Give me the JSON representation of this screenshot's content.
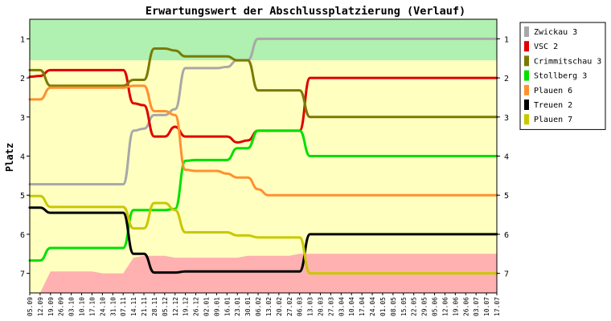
{
  "chart_data": {
    "type": "line",
    "title": "Erwartungswert der Abschlussplatzierung (Verlauf)",
    "ylabel": "Platz",
    "xlabel": "",
    "ylim": [
      0.5,
      7.5
    ],
    "y_inverted": true,
    "y_ticks": [
      "1",
      "2",
      "3",
      "4",
      "5",
      "6",
      "7"
    ],
    "grid": false,
    "legend_position": "right",
    "categories": [
      "05.09",
      "12.09",
      "19.09",
      "26.09",
      "03.10",
      "10.10",
      "17.10",
      "24.10",
      "31.10",
      "07.11",
      "14.11",
      "21.11",
      "28.11",
      "05.12",
      "12.12",
      "19.12",
      "26.12",
      "02.01",
      "09.01",
      "16.01",
      "23.01",
      "30.01",
      "06.02",
      "13.02",
      "20.02",
      "27.02",
      "06.03",
      "13.03",
      "20.03",
      "27.03",
      "03.04",
      "10.04",
      "17.04",
      "24.04",
      "01.05",
      "08.05",
      "15.05",
      "22.05",
      "29.05",
      "05.06",
      "12.06",
      "19.06",
      "26.06",
      "03.07",
      "10.07",
      "17.07"
    ],
    "bands": [
      {
        "color": "#b0f0b0",
        "lower": [
          1.55,
          1.55,
          1.55,
          1.55,
          1.55,
          1.55,
          1.55,
          1.55,
          1.55,
          1.55,
          1.55,
          1.55,
          1.55,
          1.55,
          1.55,
          1.55,
          1.55,
          1.55,
          1.55,
          1.55,
          1.55,
          1.55,
          1.55,
          1.55,
          1.55,
          1.55,
          1.55,
          1.55,
          1.55,
          1.55,
          1.55,
          1.55,
          1.55,
          1.55,
          1.55,
          1.55,
          1.55,
          1.55,
          1.55,
          1.55,
          1.55,
          1.55,
          1.55,
          1.55,
          1.55,
          1.55
        ]
      },
      {
        "color": "#ffb0b0",
        "upper": [
          7.5,
          7.5,
          6.95,
          6.95,
          6.95,
          6.95,
          6.95,
          7.0,
          7.0,
          7.0,
          6.6,
          6.55,
          6.55,
          6.55,
          6.6,
          6.6,
          6.6,
          6.6,
          6.6,
          6.6,
          6.6,
          6.55,
          6.55,
          6.55,
          6.55,
          6.55,
          6.5,
          6.5,
          6.5,
          6.5,
          6.5,
          6.5,
          6.5,
          6.5,
          6.5,
          6.5,
          6.5,
          6.5,
          6.5,
          6.5,
          6.5,
          6.5,
          6.5,
          6.5,
          6.5,
          6.5
        ]
      }
    ],
    "series": [
      {
        "name": "Zwickau 3",
        "color": "#a8a8a8",
        "values": [
          4.72,
          4.72,
          4.72,
          4.72,
          4.72,
          4.72,
          4.72,
          4.72,
          4.72,
          4.72,
          3.35,
          3.3,
          2.95,
          2.95,
          2.8,
          1.75,
          1.75,
          1.75,
          1.75,
          1.72,
          1.55,
          1.55,
          1.0,
          1.0,
          1.0,
          1.0,
          1.0,
          1.0,
          1.0,
          1.0,
          1.0,
          1.0,
          1.0,
          1.0,
          1.0,
          1.0,
          1.0,
          1.0,
          1.0,
          1.0,
          1.0,
          1.0,
          1.0,
          1.0,
          1.0,
          1.0
        ]
      },
      {
        "name": "VSC 2",
        "color": "#e00000",
        "values": [
          1.97,
          1.95,
          1.8,
          1.8,
          1.8,
          1.8,
          1.8,
          1.8,
          1.8,
          1.8,
          2.65,
          2.7,
          3.5,
          3.5,
          3.25,
          3.5,
          3.5,
          3.5,
          3.5,
          3.5,
          3.65,
          3.6,
          3.35,
          3.35,
          3.35,
          3.35,
          3.35,
          2.0,
          2.0,
          2.0,
          2.0,
          2.0,
          2.0,
          2.0,
          2.0,
          2.0,
          2.0,
          2.0,
          2.0,
          2.0,
          2.0,
          2.0,
          2.0,
          2.0,
          2.0,
          2.0
        ]
      },
      {
        "name": "Crimmitschau 3",
        "color": "#7a7a00",
        "values": [
          1.8,
          1.8,
          2.2,
          2.2,
          2.2,
          2.2,
          2.2,
          2.2,
          2.2,
          2.2,
          2.05,
          2.05,
          1.25,
          1.25,
          1.3,
          1.45,
          1.45,
          1.45,
          1.45,
          1.45,
          1.55,
          1.55,
          2.32,
          2.32,
          2.32,
          2.32,
          2.32,
          3.0,
          3.0,
          3.0,
          3.0,
          3.0,
          3.0,
          3.0,
          3.0,
          3.0,
          3.0,
          3.0,
          3.0,
          3.0,
          3.0,
          3.0,
          3.0,
          3.0,
          3.0,
          3.0
        ]
      },
      {
        "name": "Stollberg 3",
        "color": "#00e000",
        "values": [
          6.67,
          6.67,
          6.35,
          6.35,
          6.35,
          6.35,
          6.35,
          6.35,
          6.35,
          6.35,
          5.38,
          5.38,
          5.38,
          5.38,
          5.35,
          4.12,
          4.1,
          4.1,
          4.1,
          4.1,
          3.8,
          3.8,
          3.35,
          3.35,
          3.35,
          3.35,
          3.35,
          4.0,
          4.0,
          4.0,
          4.0,
          4.0,
          4.0,
          4.0,
          4.0,
          4.0,
          4.0,
          4.0,
          4.0,
          4.0,
          4.0,
          4.0,
          4.0,
          4.0,
          4.0,
          4.0
        ]
      },
      {
        "name": "Plauen 6",
        "color": "#ff9030",
        "values": [
          2.55,
          2.55,
          2.25,
          2.25,
          2.25,
          2.25,
          2.25,
          2.25,
          2.25,
          2.25,
          2.2,
          2.2,
          2.85,
          2.85,
          2.95,
          4.35,
          4.38,
          4.38,
          4.38,
          4.45,
          4.55,
          4.55,
          4.85,
          5.0,
          5.0,
          5.0,
          5.0,
          5.0,
          5.0,
          5.0,
          5.0,
          5.0,
          5.0,
          5.0,
          5.0,
          5.0,
          5.0,
          5.0,
          5.0,
          5.0,
          5.0,
          5.0,
          5.0,
          5.0,
          5.0,
          5.0
        ]
      },
      {
        "name": "Treuen 2",
        "color": "#000000",
        "values": [
          5.32,
          5.32,
          5.45,
          5.45,
          5.45,
          5.45,
          5.45,
          5.45,
          5.45,
          5.45,
          6.5,
          6.5,
          6.98,
          6.98,
          6.98,
          6.95,
          6.95,
          6.95,
          6.95,
          6.95,
          6.95,
          6.95,
          6.95,
          6.95,
          6.95,
          6.95,
          6.95,
          6.0,
          6.0,
          6.0,
          6.0,
          6.0,
          6.0,
          6.0,
          6.0,
          6.0,
          6.0,
          6.0,
          6.0,
          6.0,
          6.0,
          6.0,
          6.0,
          6.0,
          6.0,
          6.0
        ]
      },
      {
        "name": "Plauen 7",
        "color": "#c8c800",
        "values": [
          5.02,
          5.02,
          5.3,
          5.3,
          5.3,
          5.3,
          5.3,
          5.3,
          5.3,
          5.3,
          5.85,
          5.85,
          5.2,
          5.2,
          5.38,
          5.95,
          5.95,
          5.95,
          5.95,
          5.95,
          6.03,
          6.03,
          6.08,
          6.08,
          6.08,
          6.08,
          6.08,
          7.0,
          7.0,
          7.0,
          7.0,
          7.0,
          7.0,
          7.0,
          7.0,
          7.0,
          7.0,
          7.0,
          7.0,
          7.0,
          7.0,
          7.0,
          7.0,
          7.0,
          7.0,
          7.0
        ]
      }
    ]
  }
}
